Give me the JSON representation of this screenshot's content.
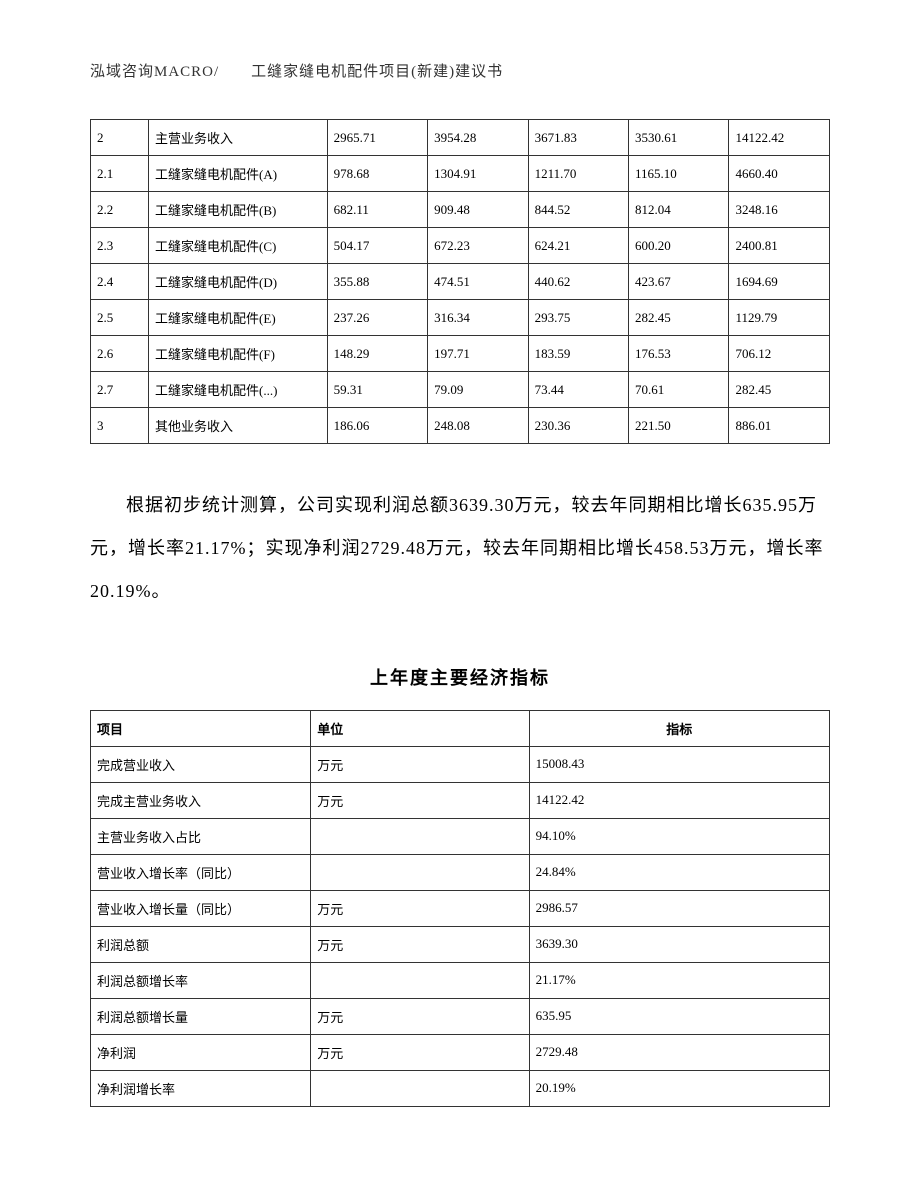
{
  "header": "泓域咨询MACRO/　　工缝家缝电机配件项目(新建)建议书",
  "table1": {
    "rows": [
      [
        "2",
        "主营业务收入",
        "2965.71",
        "3954.28",
        "3671.83",
        "3530.61",
        "14122.42"
      ],
      [
        "2.1",
        "工缝家缝电机配件(A)",
        "978.68",
        "1304.91",
        "1211.70",
        "1165.10",
        "4660.40"
      ],
      [
        "2.2",
        "工缝家缝电机配件(B)",
        "682.11",
        "909.48",
        "844.52",
        "812.04",
        "3248.16"
      ],
      [
        "2.3",
        "工缝家缝电机配件(C)",
        "504.17",
        "672.23",
        "624.21",
        "600.20",
        "2400.81"
      ],
      [
        "2.4",
        "工缝家缝电机配件(D)",
        "355.88",
        "474.51",
        "440.62",
        "423.67",
        "1694.69"
      ],
      [
        "2.5",
        "工缝家缝电机配件(E)",
        "237.26",
        "316.34",
        "293.75",
        "282.45",
        "1129.79"
      ],
      [
        "2.6",
        "工缝家缝电机配件(F)",
        "148.29",
        "197.71",
        "183.59",
        "176.53",
        "706.12"
      ],
      [
        "2.7",
        "工缝家缝电机配件(...)",
        "59.31",
        "79.09",
        "73.44",
        "70.61",
        "282.45"
      ],
      [
        "3",
        "其他业务收入",
        "186.06",
        "248.08",
        "230.36",
        "221.50",
        "886.01"
      ]
    ]
  },
  "paragraph": "根据初步统计测算，公司实现利润总额3639.30万元，较去年同期相比增长635.95万元，增长率21.17%；实现净利润2729.48万元，较去年同期相比增长458.53万元，增长率20.19%。",
  "section_title": "上年度主要经济指标",
  "table2": {
    "headers": [
      "项目",
      "单位",
      "指标"
    ],
    "rows": [
      [
        "完成营业收入",
        "万元",
        "15008.43"
      ],
      [
        "完成主营业务收入",
        "万元",
        "14122.42"
      ],
      [
        "主营业务收入占比",
        "",
        "94.10%"
      ],
      [
        "营业收入增长率（同比）",
        "",
        "24.84%"
      ],
      [
        "营业收入增长量（同比）",
        "万元",
        "2986.57"
      ],
      [
        "利润总额",
        "万元",
        "3639.30"
      ],
      [
        "利润总额增长率",
        "",
        "21.17%"
      ],
      [
        "利润总额增长量",
        "万元",
        "635.95"
      ],
      [
        "净利润",
        "万元",
        "2729.48"
      ],
      [
        "净利润增长率",
        "",
        "20.19%"
      ]
    ]
  }
}
